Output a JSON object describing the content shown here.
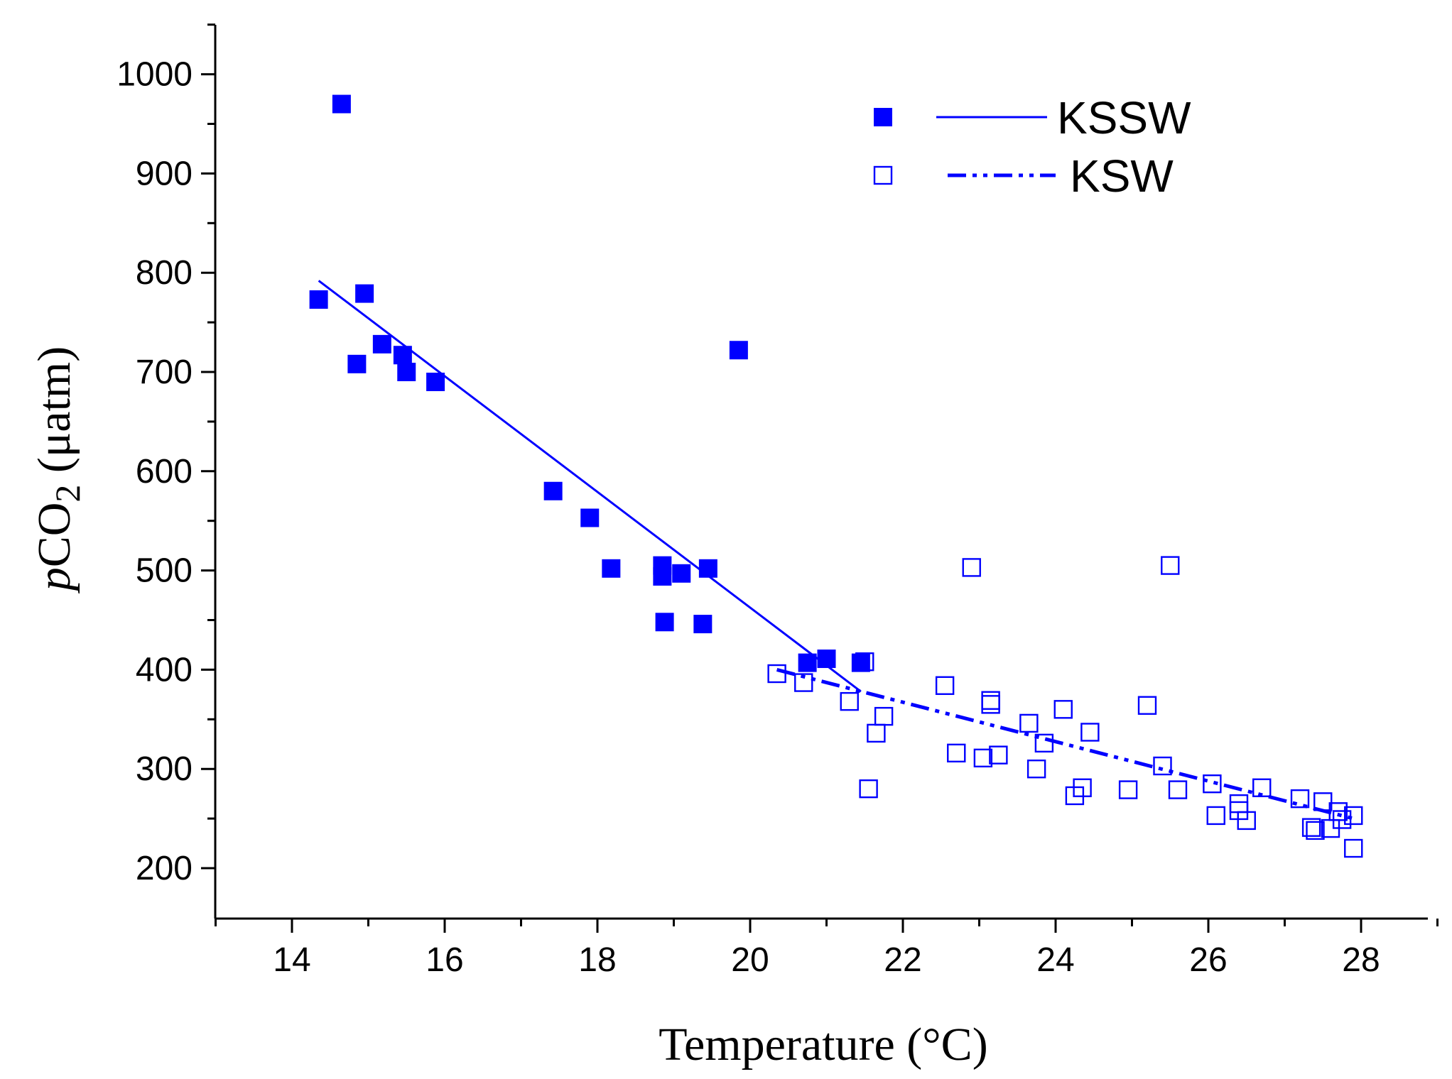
{
  "chart_data": {
    "type": "scatter",
    "title": "",
    "xlabel": "Temperature (°C)",
    "ylabel_italic": "p",
    "ylabel_main": "CO",
    "ylabel_sub": "2",
    "ylabel_unit": " (μatm)",
    "xlim": [
      13,
      29
    ],
    "ylim": [
      150,
      1050
    ],
    "x_ticks": [
      14,
      16,
      18,
      20,
      22,
      24,
      26,
      28
    ],
    "y_ticks": [
      200,
      300,
      400,
      500,
      600,
      700,
      800,
      900,
      1000
    ],
    "colors": {
      "series": "#0000ff",
      "axis": "#000000"
    },
    "legend_position": "top-right",
    "series": [
      {
        "name": "KSSW",
        "marker": "filled-square",
        "fit_line": "solid",
        "fit": {
          "x": [
            14.35,
            21.45
          ],
          "y": [
            792,
            378
          ]
        },
        "points": [
          [
            14.65,
            970
          ],
          [
            14.35,
            773
          ],
          [
            14.95,
            779
          ],
          [
            14.85,
            708
          ],
          [
            15.18,
            728
          ],
          [
            15.45,
            717
          ],
          [
            15.5,
            700
          ],
          [
            15.88,
            690
          ],
          [
            17.42,
            580
          ],
          [
            17.9,
            553
          ],
          [
            18.18,
            502
          ],
          [
            18.85,
            505
          ],
          [
            18.85,
            494
          ],
          [
            19.1,
            497
          ],
          [
            18.88,
            448
          ],
          [
            19.45,
            502
          ],
          [
            19.38,
            446
          ],
          [
            19.85,
            722
          ],
          [
            20.75,
            407
          ],
          [
            21.0,
            411
          ],
          [
            21.45,
            407
          ]
        ]
      },
      {
        "name": "KSW",
        "marker": "open-square",
        "fit_line": "dash-dot-dot",
        "fit": {
          "x": [
            20.35,
            27.9
          ],
          "y": [
            400,
            250
          ]
        },
        "points": [
          [
            20.35,
            396
          ],
          [
            20.7,
            387
          ],
          [
            21.3,
            368
          ],
          [
            21.5,
            408
          ],
          [
            21.55,
            280
          ],
          [
            21.65,
            336
          ],
          [
            21.75,
            353
          ],
          [
            22.55,
            384
          ],
          [
            22.7,
            316
          ],
          [
            22.9,
            503
          ],
          [
            23.05,
            311
          ],
          [
            23.15,
            369
          ],
          [
            23.15,
            365
          ],
          [
            23.25,
            314
          ],
          [
            23.65,
            346
          ],
          [
            23.75,
            300
          ],
          [
            23.85,
            326
          ],
          [
            24.1,
            360
          ],
          [
            24.25,
            273
          ],
          [
            24.35,
            281
          ],
          [
            24.45,
            337
          ],
          [
            24.95,
            279
          ],
          [
            25.2,
            364
          ],
          [
            25.4,
            303
          ],
          [
            25.5,
            505
          ],
          [
            25.6,
            279
          ],
          [
            26.05,
            285
          ],
          [
            26.1,
            253
          ],
          [
            26.4,
            265
          ],
          [
            26.4,
            258
          ],
          [
            26.5,
            248
          ],
          [
            26.7,
            281
          ],
          [
            27.2,
            270
          ],
          [
            27.35,
            241
          ],
          [
            27.4,
            238
          ],
          [
            27.5,
            267
          ],
          [
            27.6,
            240
          ],
          [
            27.7,
            257
          ],
          [
            27.75,
            249
          ],
          [
            27.9,
            253
          ],
          [
            27.9,
            220
          ]
        ]
      }
    ]
  }
}
